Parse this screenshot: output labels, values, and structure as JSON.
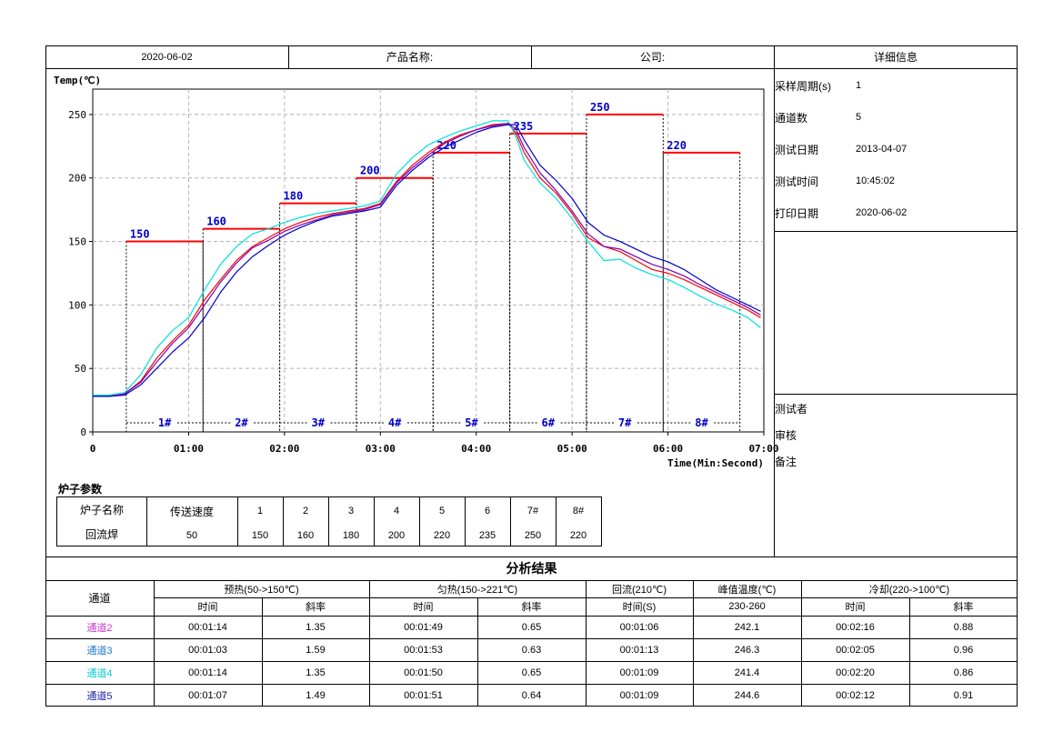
{
  "header": {
    "date": "2020-06-02",
    "product_label": "产品名称:",
    "company_label": "公司:",
    "details_title": "详细信息"
  },
  "details": [
    {
      "label": "采样周期(s)",
      "value": "1"
    },
    {
      "label": "通道数",
      "value": "5"
    },
    {
      "label": "测试日期",
      "value": "2013-04-07"
    },
    {
      "label": "测试时间",
      "value": "10:45:02"
    },
    {
      "label": "打印日期",
      "value": "2020-06-02"
    }
  ],
  "signoff": {
    "tester": "测试者",
    "reviewer": "审核",
    "remark": "备注"
  },
  "furnace": {
    "title": "炉子参数",
    "name_label": "炉子名称",
    "speed_label": "传送速度",
    "name_value": "回流焊",
    "speed_value": "50",
    "zones": [
      {
        "label": "1",
        "value": "150"
      },
      {
        "label": "2",
        "value": "160"
      },
      {
        "label": "3",
        "value": "180"
      },
      {
        "label": "4",
        "value": "200"
      },
      {
        "label": "5",
        "value": "220"
      },
      {
        "label": "6",
        "value": "235"
      },
      {
        "label": "7#",
        "value": "250"
      },
      {
        "label": "8#",
        "value": "220"
      }
    ]
  },
  "analysis": {
    "title": "分析结果",
    "channel_label": "通道",
    "groups": [
      "预热(50->150℃)",
      "匀热(150->221℃)",
      "回流(210℃)",
      "峰值温度(℃)",
      "冷却(220->100℃)"
    ],
    "subheaders": [
      "时间",
      "斜率",
      "时间",
      "斜率",
      "时间(S)",
      "230-260",
      "时间",
      "斜率"
    ],
    "rows": [
      {
        "name": "通道2",
        "color": "#cc33cc",
        "cells": [
          "00:01:14",
          "1.35",
          "00:01:49",
          "0.65",
          "00:01:06",
          "242.1",
          "00:02:16",
          "0.88"
        ]
      },
      {
        "name": "通道3",
        "color": "#1e78c8",
        "cells": [
          "00:01:03",
          "1.59",
          "00:01:53",
          "0.63",
          "00:01:13",
          "246.3",
          "00:02:05",
          "0.96"
        ]
      },
      {
        "name": "通道4",
        "color": "#00cccc",
        "cells": [
          "00:01:14",
          "1.35",
          "00:01:50",
          "0.65",
          "00:01:09",
          "241.4",
          "00:02:20",
          "0.86"
        ]
      },
      {
        "name": "通道5",
        "color": "#1c1c9c",
        "cells": [
          "00:01:07",
          "1.49",
          "00:01:51",
          "0.64",
          "00:01:09",
          "244.6",
          "00:02:12",
          "0.91"
        ]
      }
    ]
  },
  "chart_data": {
    "type": "line",
    "ylabel": "Temp(℃)",
    "xlabel": "Time(Min:Second)",
    "xlim": [
      0,
      420
    ],
    "ylim": [
      0,
      270
    ],
    "x_ticks": [
      {
        "v": 0,
        "label": "0"
      },
      {
        "v": 60,
        "label": "01:00"
      },
      {
        "v": 120,
        "label": "02:00"
      },
      {
        "v": 180,
        "label": "03:00"
      },
      {
        "v": 240,
        "label": "04:00"
      },
      {
        "v": 300,
        "label": "05:00"
      },
      {
        "v": 360,
        "label": "06:00"
      },
      {
        "v": 420,
        "label": "07:00"
      }
    ],
    "y_ticks": [
      0,
      50,
      100,
      150,
      200,
      250
    ],
    "grid": true,
    "zones": [
      {
        "name": "1#",
        "start": 21,
        "end": 69,
        "setpoint": 150
      },
      {
        "name": "2#",
        "start": 69,
        "end": 117,
        "setpoint": 160
      },
      {
        "name": "3#",
        "start": 117,
        "end": 165,
        "setpoint": 180
      },
      {
        "name": "4#",
        "start": 165,
        "end": 213,
        "setpoint": 200
      },
      {
        "name": "5#",
        "start": 213,
        "end": 261,
        "setpoint": 220
      },
      {
        "name": "6#",
        "start": 261,
        "end": 309,
        "setpoint": 235
      },
      {
        "name": "7#",
        "start": 309,
        "end": 357,
        "setpoint": 250
      },
      {
        "name": "8#",
        "start": 357,
        "end": 405,
        "setpoint": 220
      }
    ],
    "colors": {
      "setpoint": "#ff0000",
      "label": "#0000cc",
      "grid": "#b4b4b4"
    },
    "series": [
      {
        "color": "#ff0000",
        "points": [
          [
            0,
            28
          ],
          [
            10,
            28
          ],
          [
            20,
            30
          ],
          [
            30,
            40
          ],
          [
            40,
            58
          ],
          [
            50,
            72
          ],
          [
            60,
            84
          ],
          [
            70,
            104
          ],
          [
            80,
            120
          ],
          [
            90,
            135
          ],
          [
            100,
            146
          ],
          [
            110,
            153
          ],
          [
            120,
            160
          ],
          [
            130,
            165
          ],
          [
            140,
            169
          ],
          [
            150,
            172
          ],
          [
            160,
            174
          ],
          [
            170,
            176
          ],
          [
            180,
            180
          ],
          [
            190,
            197
          ],
          [
            200,
            210
          ],
          [
            210,
            220
          ],
          [
            220,
            228
          ],
          [
            230,
            234
          ],
          [
            240,
            238
          ],
          [
            250,
            242
          ],
          [
            260,
            243
          ],
          [
            265,
            235
          ],
          [
            270,
            220
          ],
          [
            280,
            200
          ],
          [
            290,
            188
          ],
          [
            300,
            172
          ],
          [
            310,
            153
          ],
          [
            320,
            146
          ],
          [
            330,
            142
          ],
          [
            340,
            135
          ],
          [
            350,
            128
          ],
          [
            360,
            125
          ],
          [
            370,
            120
          ],
          [
            380,
            114
          ],
          [
            390,
            108
          ],
          [
            400,
            102
          ],
          [
            410,
            96
          ],
          [
            418,
            90
          ]
        ]
      },
      {
        "color": "#00e0e0",
        "points": [
          [
            0,
            29
          ],
          [
            10,
            29
          ],
          [
            20,
            31
          ],
          [
            30,
            45
          ],
          [
            40,
            66
          ],
          [
            50,
            80
          ],
          [
            60,
            90
          ],
          [
            70,
            112
          ],
          [
            80,
            132
          ],
          [
            90,
            146
          ],
          [
            100,
            156
          ],
          [
            110,
            160
          ],
          [
            120,
            165
          ],
          [
            130,
            169
          ],
          [
            140,
            172
          ],
          [
            150,
            174
          ],
          [
            160,
            176
          ],
          [
            170,
            178
          ],
          [
            180,
            182
          ],
          [
            190,
            203
          ],
          [
            200,
            216
          ],
          [
            210,
            226
          ],
          [
            220,
            232
          ],
          [
            230,
            237
          ],
          [
            240,
            241
          ],
          [
            250,
            245
          ],
          [
            260,
            245
          ],
          [
            265,
            232
          ],
          [
            270,
            214
          ],
          [
            280,
            196
          ],
          [
            290,
            184
          ],
          [
            300,
            168
          ],
          [
            310,
            150
          ],
          [
            320,
            135
          ],
          [
            330,
            136
          ],
          [
            340,
            129
          ],
          [
            350,
            124
          ],
          [
            360,
            120
          ],
          [
            370,
            114
          ],
          [
            380,
            107
          ],
          [
            390,
            101
          ],
          [
            400,
            96
          ],
          [
            410,
            90
          ],
          [
            418,
            82
          ]
        ]
      },
      {
        "color": "#7f00b4",
        "points": [
          [
            0,
            28
          ],
          [
            10,
            28
          ],
          [
            20,
            30
          ],
          [
            30,
            39
          ],
          [
            40,
            55
          ],
          [
            50,
            70
          ],
          [
            60,
            82
          ],
          [
            70,
            100
          ],
          [
            80,
            118
          ],
          [
            90,
            133
          ],
          [
            100,
            145
          ],
          [
            110,
            151
          ],
          [
            120,
            158
          ],
          [
            130,
            163
          ],
          [
            140,
            167
          ],
          [
            150,
            171
          ],
          [
            160,
            173
          ],
          [
            170,
            175
          ],
          [
            180,
            179
          ],
          [
            190,
            196
          ],
          [
            200,
            208
          ],
          [
            210,
            218
          ],
          [
            220,
            227
          ],
          [
            230,
            233
          ],
          [
            240,
            238
          ],
          [
            250,
            241
          ],
          [
            260,
            243
          ],
          [
            265,
            238
          ],
          [
            270,
            224
          ],
          [
            280,
            204
          ],
          [
            290,
            190
          ],
          [
            300,
            174
          ],
          [
            310,
            156
          ],
          [
            320,
            146
          ],
          [
            330,
            144
          ],
          [
            340,
            138
          ],
          [
            350,
            132
          ],
          [
            360,
            128
          ],
          [
            370,
            123
          ],
          [
            380,
            116
          ],
          [
            390,
            110
          ],
          [
            400,
            104
          ],
          [
            410,
            98
          ],
          [
            418,
            92
          ]
        ]
      },
      {
        "color": "#0000cc",
        "points": [
          [
            0,
            28
          ],
          [
            10,
            28
          ],
          [
            20,
            29
          ],
          [
            30,
            37
          ],
          [
            40,
            50
          ],
          [
            50,
            63
          ],
          [
            60,
            74
          ],
          [
            70,
            90
          ],
          [
            80,
            110
          ],
          [
            90,
            126
          ],
          [
            100,
            138
          ],
          [
            110,
            147
          ],
          [
            120,
            155
          ],
          [
            130,
            161
          ],
          [
            140,
            166
          ],
          [
            150,
            170
          ],
          [
            160,
            172
          ],
          [
            170,
            174
          ],
          [
            180,
            177
          ],
          [
            190,
            194
          ],
          [
            200,
            206
          ],
          [
            210,
            216
          ],
          [
            220,
            224
          ],
          [
            230,
            230
          ],
          [
            240,
            236
          ],
          [
            250,
            240
          ],
          [
            260,
            242
          ],
          [
            265,
            242
          ],
          [
            270,
            230
          ],
          [
            280,
            210
          ],
          [
            290,
            198
          ],
          [
            300,
            184
          ],
          [
            310,
            165
          ],
          [
            320,
            155
          ],
          [
            330,
            150
          ],
          [
            340,
            144
          ],
          [
            350,
            138
          ],
          [
            360,
            134
          ],
          [
            370,
            128
          ],
          [
            380,
            120
          ],
          [
            390,
            112
          ],
          [
            400,
            106
          ],
          [
            410,
            100
          ],
          [
            418,
            95
          ]
        ]
      }
    ]
  }
}
